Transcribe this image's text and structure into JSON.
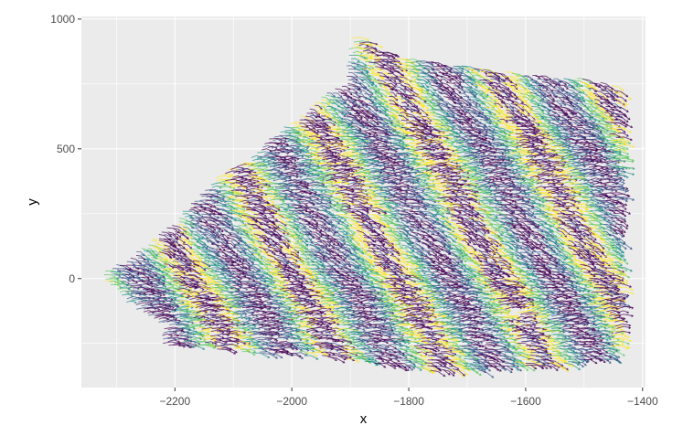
{
  "chart_data": {
    "type": "line",
    "title": "",
    "xlabel": "x",
    "ylabel": "y",
    "xlim": [
      -2360,
      -1395
    ],
    "ylim": [
      -420,
      1010
    ],
    "x_ticks": [
      -2200,
      -2000,
      -1800,
      -1600,
      -1400
    ],
    "x_tick_labels": [
      "−2200",
      "−2000",
      "−1800",
      "−1600",
      "−1400"
    ],
    "y_ticks": [
      0,
      500,
      1000
    ],
    "y_tick_labels": [
      "0",
      "500",
      "1000"
    ],
    "grid": true,
    "legend": "none",
    "colormap": [
      "#440154",
      "#3b528b",
      "#21918c",
      "#5ec962",
      "#fde725"
    ],
    "panel_background": "#ebebeb",
    "grid_color": "#ffffff",
    "series_description": "dense field of short trajectory segments with arrowheads, colored by viridis palette",
    "region": {
      "outline": [
        [
          -2320,
          30
        ],
        [
          -2280,
          80
        ],
        [
          -2200,
          230
        ],
        [
          -2130,
          390
        ],
        [
          -2070,
          470
        ],
        [
          -2030,
          560
        ],
        [
          -1990,
          620
        ],
        [
          -1950,
          700
        ],
        [
          -1910,
          760
        ],
        [
          -1900,
          940
        ],
        [
          -1860,
          880
        ],
        [
          -1800,
          840
        ],
        [
          -1700,
          820
        ],
        [
          -1600,
          790
        ],
        [
          -1500,
          770
        ],
        [
          -1440,
          740
        ],
        [
          -1440,
          300
        ],
        [
          -1440,
          -200
        ],
        [
          -1450,
          -310
        ],
        [
          -1550,
          -340
        ],
        [
          -1650,
          -350
        ],
        [
          -1750,
          -360
        ],
        [
          -1850,
          -330
        ],
        [
          -1950,
          -300
        ],
        [
          -2050,
          -290
        ],
        [
          -2150,
          -270
        ],
        [
          -2230,
          -260
        ],
        [
          -2220,
          -180
        ],
        [
          -2280,
          -100
        ],
        [
          -2300,
          -50
        ],
        [
          -2330,
          0
        ]
      ],
      "gap": [
        [
          -1660,
          -130
        ],
        [
          -1630,
          -120
        ],
        [
          -1610,
          -140
        ],
        [
          -1640,
          -150
        ]
      ]
    }
  }
}
